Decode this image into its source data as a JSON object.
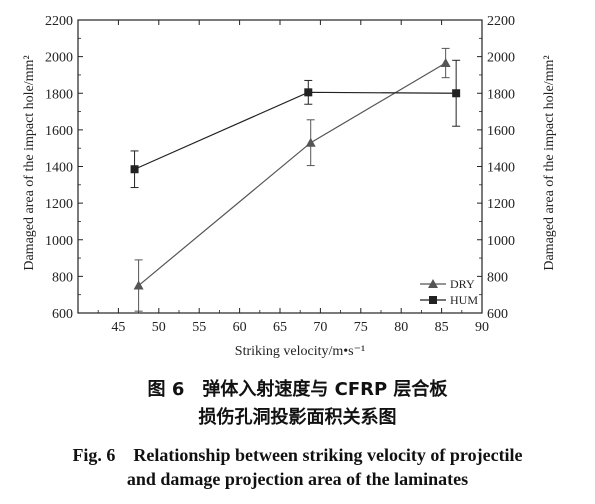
{
  "chart_data": {
    "type": "line",
    "xlabel": "Striking velocity/m•s⁻¹",
    "ylabel": "Damaged area of the impact hole/mm²",
    "ylabel_right": "Damaged area of the impact hole/mm²",
    "xlim": [
      40,
      90
    ],
    "ylim": [
      600,
      2200
    ],
    "x_ticks": [
      45,
      50,
      55,
      60,
      65,
      70,
      75,
      80,
      85,
      90
    ],
    "y_ticks": [
      600,
      800,
      1000,
      1200,
      1400,
      1600,
      1800,
      2000,
      2200
    ],
    "grid": false,
    "legend_position": "bottom-right",
    "series": [
      {
        "name": "DRY",
        "marker": "triangle",
        "color": "#555555",
        "points": [
          {
            "x": 47.5,
            "y": 750,
            "err": 140
          },
          {
            "x": 68.8,
            "y": 1530,
            "err": 125
          },
          {
            "x": 85.5,
            "y": 1965,
            "err": 80
          }
        ]
      },
      {
        "name": "HUM",
        "marker": "square",
        "color": "#222222",
        "points": [
          {
            "x": 47.0,
            "y": 1385,
            "err": 100
          },
          {
            "x": 68.5,
            "y": 1805,
            "err": 65
          },
          {
            "x": 86.8,
            "y": 1800,
            "err": 180
          }
        ]
      }
    ]
  },
  "caption": {
    "cn_line1": "图 6　弹体入射速度与 CFRP 层合板",
    "cn_line2": "损伤孔洞投影面积关系图",
    "en_line1": "Fig. 6　Relationship between striking velocity of projectile",
    "en_line2": "and damage projection area of the laminates"
  }
}
